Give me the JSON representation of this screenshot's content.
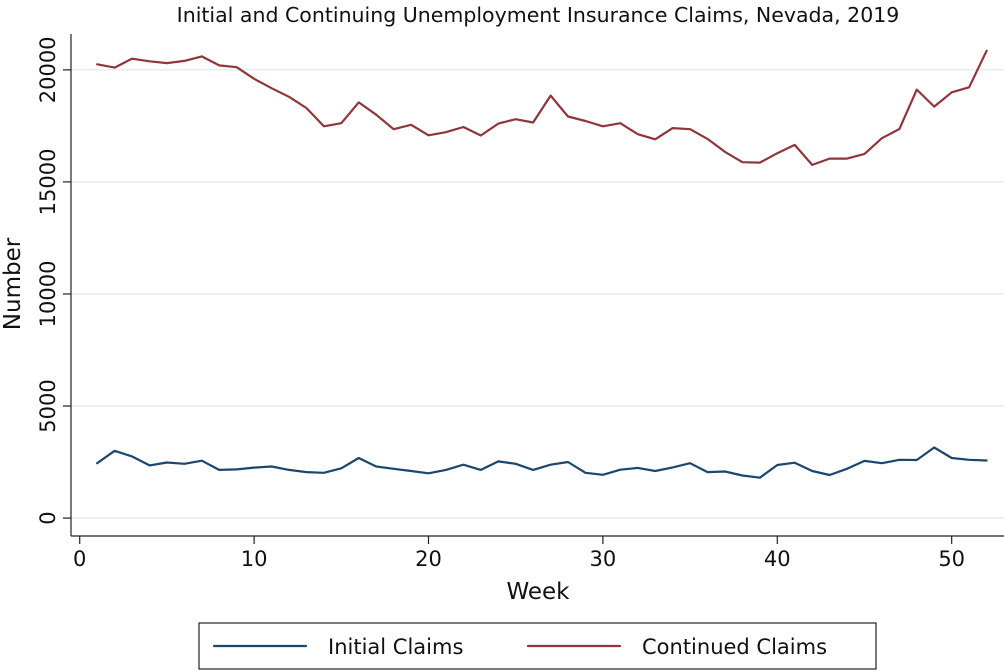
{
  "chart_data": {
    "type": "line",
    "title": "Initial and Continuing Unemployment Insurance Claims, Nevada, 2019",
    "xlabel": "Week",
    "ylabel": "Number",
    "xlim": [
      -0.5,
      53
    ],
    "ylim": [
      -800,
      21600
    ],
    "xticks": [
      0,
      10,
      20,
      30,
      40,
      50
    ],
    "yticks": [
      0,
      5000,
      10000,
      15000,
      20000
    ],
    "grid": true,
    "legend_position": "bottom",
    "x": [
      1,
      2,
      3,
      4,
      5,
      6,
      7,
      8,
      9,
      10,
      11,
      12,
      13,
      14,
      15,
      16,
      17,
      18,
      19,
      20,
      21,
      22,
      23,
      24,
      25,
      26,
      27,
      28,
      29,
      30,
      31,
      32,
      33,
      34,
      35,
      36,
      37,
      38,
      39,
      40,
      41,
      42,
      43,
      44,
      45,
      46,
      47,
      48,
      49,
      50,
      51,
      52
    ],
    "series": [
      {
        "name": "Initial Claims",
        "color": "#1a476f",
        "values": [
          2450,
          3000,
          2750,
          2350,
          2480,
          2420,
          2560,
          2150,
          2170,
          2250,
          2300,
          2150,
          2050,
          2020,
          2220,
          2680,
          2300,
          2200,
          2100,
          2000,
          2150,
          2380,
          2150,
          2530,
          2420,
          2150,
          2380,
          2500,
          2020,
          1930,
          2160,
          2240,
          2100,
          2260,
          2450,
          2050,
          2080,
          1900,
          1800,
          2370,
          2470,
          2100,
          1920,
          2200,
          2550,
          2450,
          2600,
          2590,
          3150,
          2680,
          2600,
          2570
        ]
      },
      {
        "name": "Continued Claims",
        "color": "#90353b",
        "values": [
          20250,
          20100,
          20500,
          20380,
          20300,
          20400,
          20600,
          20200,
          20120,
          19600,
          19180,
          18800,
          18300,
          17480,
          17620,
          18550,
          18000,
          17350,
          17550,
          17080,
          17220,
          17450,
          17070,
          17600,
          17800,
          17650,
          18850,
          17920,
          17720,
          17480,
          17620,
          17130,
          16900,
          17400,
          17350,
          16920,
          16340,
          15880,
          15860,
          16280,
          16650,
          15760,
          16040,
          16040,
          16250,
          16950,
          17360,
          19120,
          18360,
          19000,
          19220,
          20850
        ]
      }
    ]
  }
}
